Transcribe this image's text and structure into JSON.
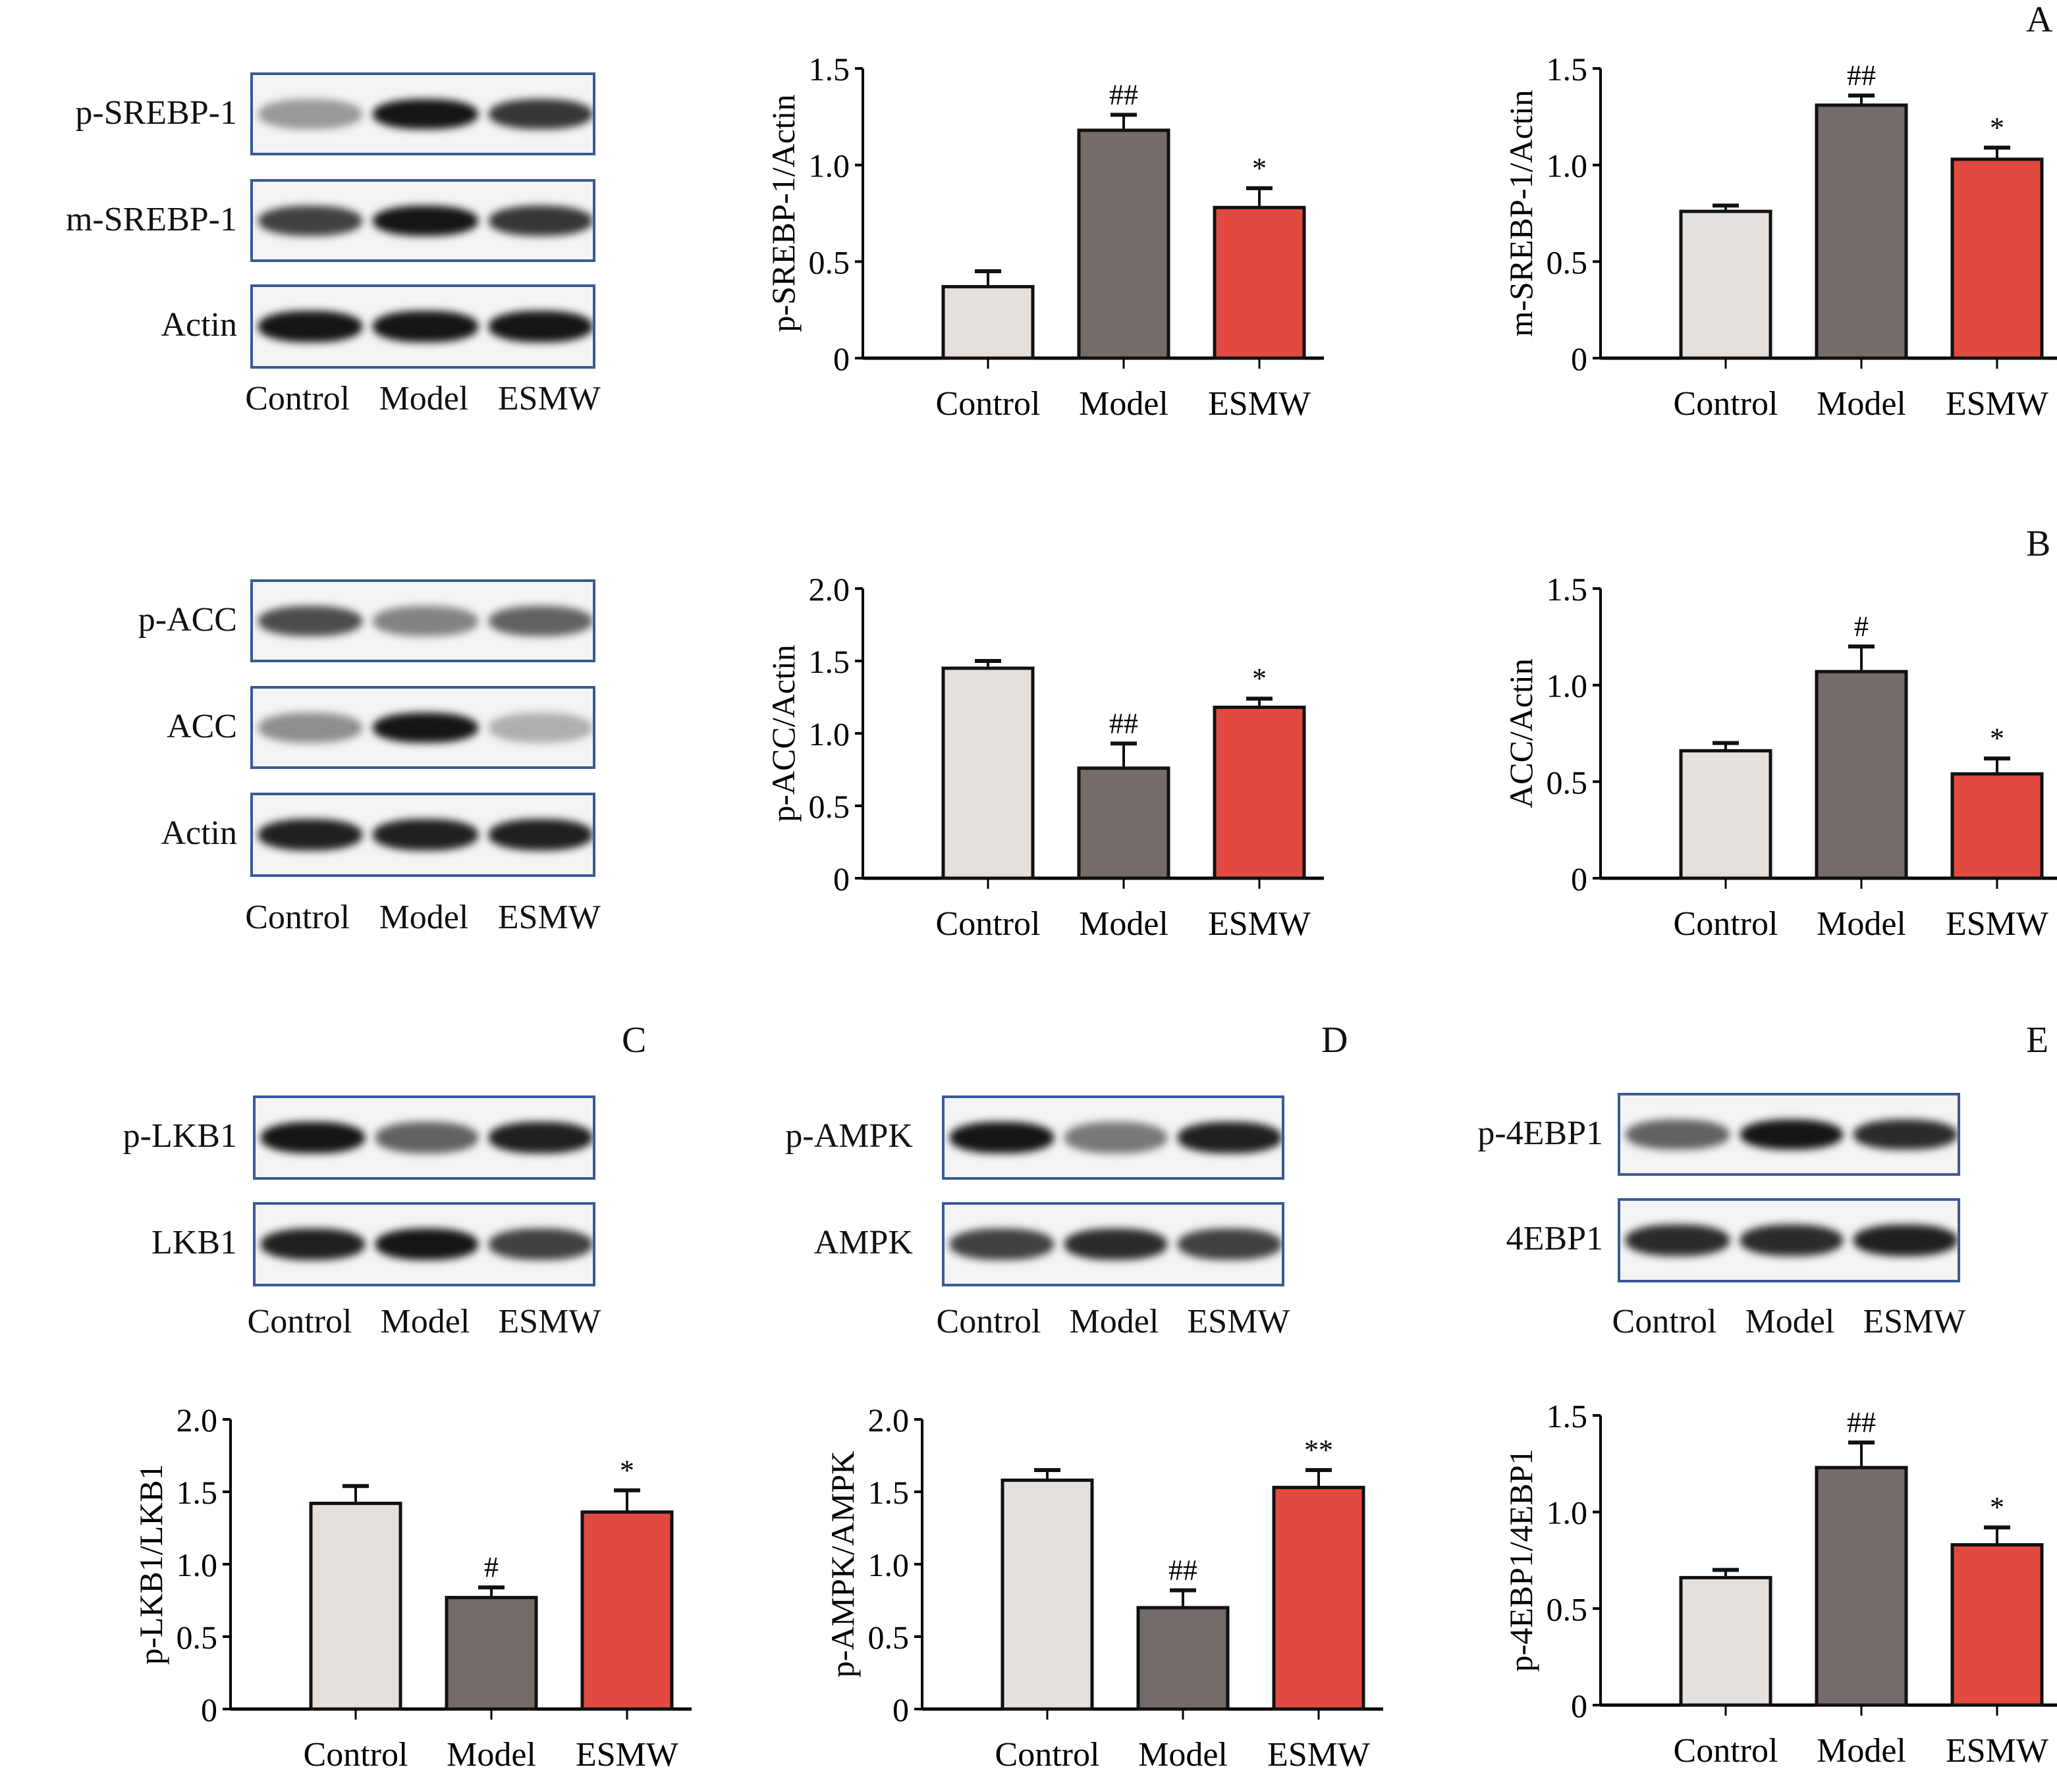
{
  "panel_letters": {
    "A": "A",
    "B": "B",
    "C": "C",
    "D": "D",
    "E": "E"
  },
  "lanes": [
    "Control",
    "Model",
    "ESMW"
  ],
  "blots": {
    "A": [
      {
        "label": "p-SREBP-1",
        "band_intensity": [
          0.35,
          0.95,
          0.8
        ]
      },
      {
        "label": "m-SREBP-1",
        "band_intensity": [
          0.75,
          0.95,
          0.8
        ]
      },
      {
        "label": "Actin",
        "band_intensity": [
          0.95,
          0.95,
          0.95
        ]
      }
    ],
    "B": [
      {
        "label": "p-ACC",
        "band_intensity": [
          0.7,
          0.45,
          0.6
        ]
      },
      {
        "label": "ACC",
        "band_intensity": [
          0.4,
          0.95,
          0.25
        ]
      },
      {
        "label": "Actin",
        "band_intensity": [
          0.9,
          0.9,
          0.9
        ]
      }
    ],
    "C": [
      {
        "label": "p-LKB1",
        "band_intensity": [
          0.95,
          0.6,
          0.9
        ]
      },
      {
        "label": "LKB1",
        "band_intensity": [
          0.9,
          0.95,
          0.75
        ]
      }
    ],
    "D": [
      {
        "label": "p-AMPK",
        "band_intensity": [
          0.95,
          0.5,
          0.9
        ]
      },
      {
        "label": "AMPK",
        "band_intensity": [
          0.75,
          0.85,
          0.75
        ]
      }
    ],
    "E": [
      {
        "label": "p-4EBP1",
        "band_intensity": [
          0.6,
          0.95,
          0.85
        ]
      },
      {
        "label": "4EBP1",
        "band_intensity": [
          0.85,
          0.85,
          0.9
        ]
      }
    ]
  },
  "colors": {
    "Control": "#e6e0dd",
    "Model": "#736c68",
    "ESMW": "#e04a40"
  },
  "chart_data": [
    {
      "type": "bar",
      "ylabel": "p-SREBP-1/Actin",
      "categories": [
        "Control",
        "Model",
        "ESMW"
      ],
      "values": [
        0.37,
        1.18,
        0.78
      ],
      "errors": [
        0.08,
        0.08,
        0.1
      ],
      "annotations": [
        "",
        "##",
        "*"
      ],
      "ylim": [
        0,
        1.5
      ],
      "yticks": [
        "0",
        "0.5",
        "1.0",
        "1.5"
      ]
    },
    {
      "type": "bar",
      "ylabel": "m-SREBP-1/Actin",
      "categories": [
        "Control",
        "Model",
        "ESMW"
      ],
      "values": [
        0.76,
        1.31,
        1.03
      ],
      "errors": [
        0.03,
        0.05,
        0.06
      ],
      "annotations": [
        "",
        "##",
        "*"
      ],
      "ylim": [
        0,
        1.5
      ],
      "yticks": [
        "0",
        "0.5",
        "1.0",
        "1.5"
      ]
    },
    {
      "type": "bar",
      "ylabel": "p-ACC/Actin",
      "categories": [
        "Control",
        "Model",
        "ESMW"
      ],
      "values": [
        1.45,
        0.76,
        1.18
      ],
      "errors": [
        0.05,
        0.17,
        0.06
      ],
      "annotations": [
        "",
        "##",
        "*"
      ],
      "ylim": [
        0,
        2.0
      ],
      "yticks": [
        "0",
        "0.5",
        "1.0",
        "1.5",
        "2.0"
      ]
    },
    {
      "type": "bar",
      "ylabel": "ACC/Actin",
      "categories": [
        "Control",
        "Model",
        "ESMW"
      ],
      "values": [
        0.66,
        1.07,
        0.54
      ],
      "errors": [
        0.04,
        0.13,
        0.08
      ],
      "annotations": [
        "",
        "#",
        "*"
      ],
      "ylim": [
        0,
        1.5
      ],
      "yticks": [
        "0",
        "0.5",
        "1.0",
        "1.5"
      ]
    },
    {
      "type": "bar",
      "ylabel": "p-LKB1/LKB1",
      "categories": [
        "Control",
        "Model",
        "ESMW"
      ],
      "values": [
        1.42,
        0.77,
        1.36
      ],
      "errors": [
        0.12,
        0.07,
        0.15
      ],
      "annotations": [
        "",
        "#",
        "*"
      ],
      "ylim": [
        0,
        2.0
      ],
      "yticks": [
        "0",
        "0.5",
        "1.0",
        "1.5",
        "2.0"
      ]
    },
    {
      "type": "bar",
      "ylabel": "p-AMPK/AMPK",
      "categories": [
        "Control",
        "Model",
        "ESMW"
      ],
      "values": [
        1.58,
        0.7,
        1.53
      ],
      "errors": [
        0.07,
        0.12,
        0.12
      ],
      "annotations": [
        "",
        "##",
        "**"
      ],
      "ylim": [
        0,
        2.0
      ],
      "yticks": [
        "0",
        "0.5",
        "1.0",
        "1.5",
        "2.0"
      ]
    },
    {
      "type": "bar",
      "ylabel": "p-4EBP1/4EBP1",
      "categories": [
        "Control",
        "Model",
        "ESMW"
      ],
      "values": [
        0.66,
        1.23,
        0.83
      ],
      "errors": [
        0.04,
        0.13,
        0.09
      ],
      "annotations": [
        "",
        "##",
        "*"
      ],
      "ylim": [
        0,
        1.5
      ],
      "yticks": [
        "0",
        "0.5",
        "1.0",
        "1.5"
      ]
    }
  ]
}
